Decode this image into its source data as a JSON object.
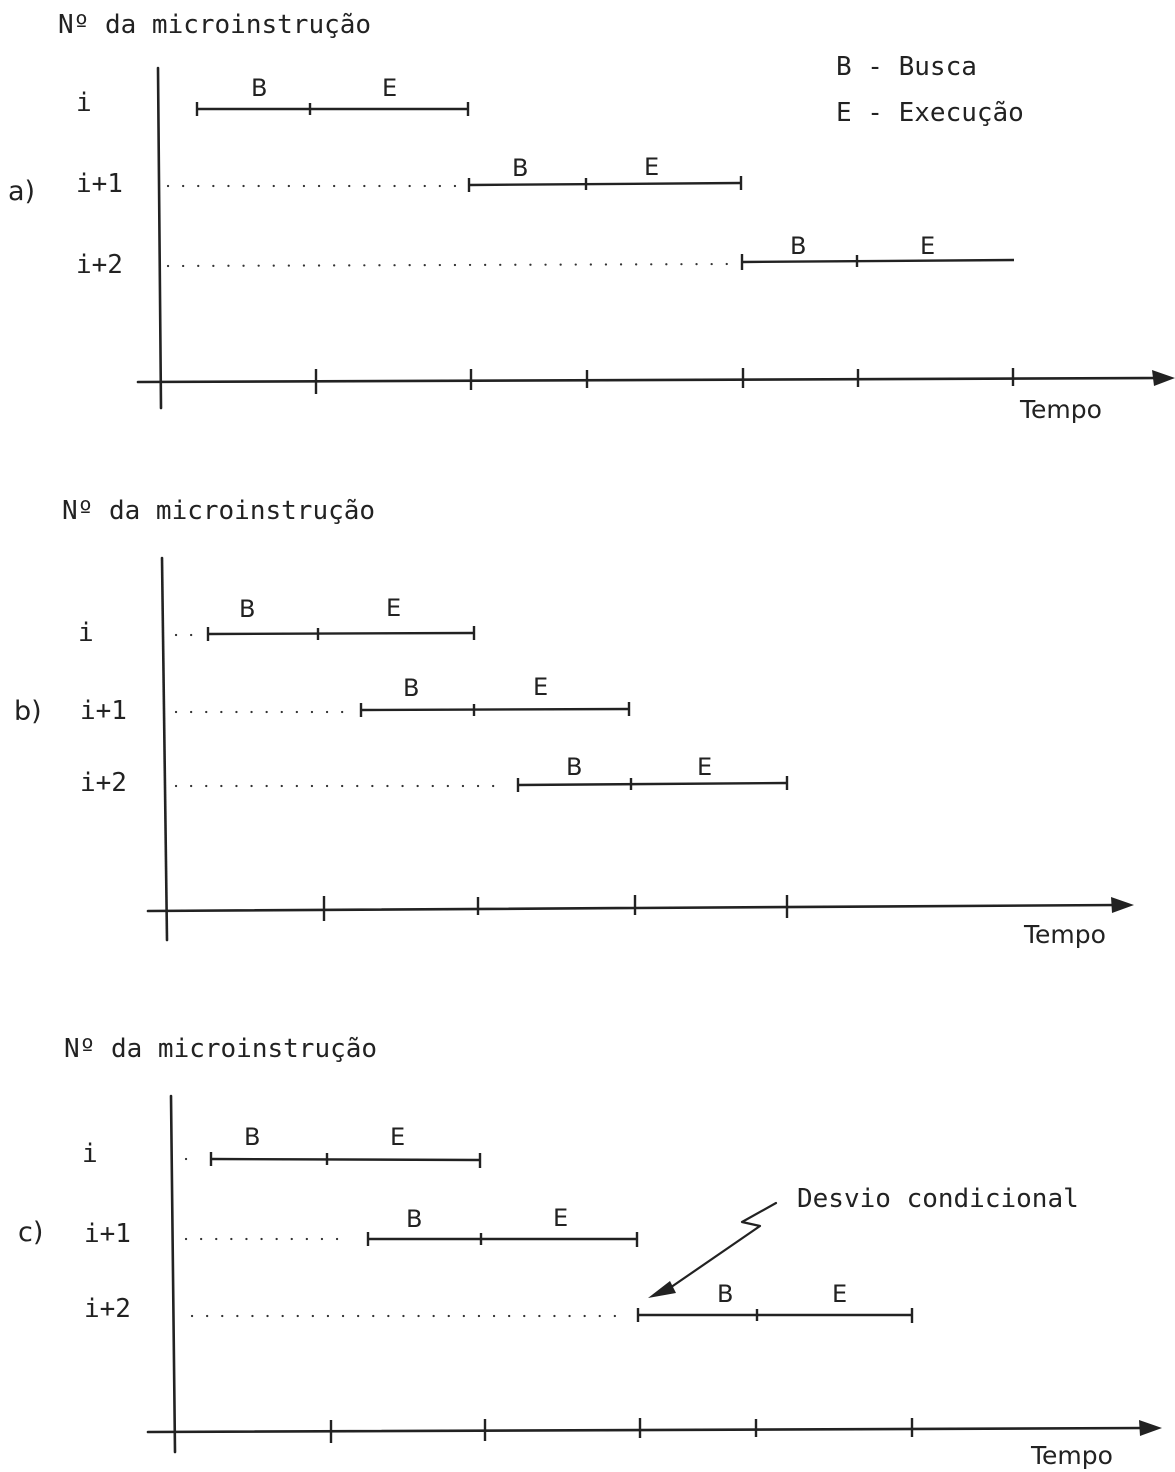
{
  "legend": {
    "fetch": "B - Busca",
    "execute": "E - Execução"
  },
  "panels": [
    {
      "id": "a",
      "panel_label": "a)",
      "y_axis_label": "Nº da microinstrução",
      "x_axis_label": "Tempo",
      "rows": [
        {
          "label": "i",
          "phases": [
            "B",
            "E"
          ]
        },
        {
          "label": "i+1",
          "phases": [
            "B",
            "E"
          ]
        },
        {
          "label": "i+2",
          "phases": [
            "B",
            "E"
          ]
        }
      ],
      "mode": "sequential"
    },
    {
      "id": "b",
      "panel_label": "b)",
      "y_axis_label": "Nº da microinstrução",
      "x_axis_label": "Tempo",
      "rows": [
        {
          "label": "i",
          "phases": [
            "B",
            "E"
          ]
        },
        {
          "label": "i+1",
          "phases": [
            "B",
            "E"
          ]
        },
        {
          "label": "i+2",
          "phases": [
            "B",
            "E"
          ]
        }
      ],
      "mode": "overlapped"
    },
    {
      "id": "c",
      "panel_label": "c)",
      "y_axis_label": "Nº da microinstrução",
      "x_axis_label": "Tempo",
      "rows": [
        {
          "label": "i",
          "phases": [
            "B",
            "E"
          ]
        },
        {
          "label": "i+1",
          "phases": [
            "B",
            "E"
          ]
        },
        {
          "label": "i+2",
          "phases": [
            "B",
            "E"
          ]
        }
      ],
      "mode": "overlapped with conditional branch",
      "annotation": "Desvio condicional"
    }
  ]
}
